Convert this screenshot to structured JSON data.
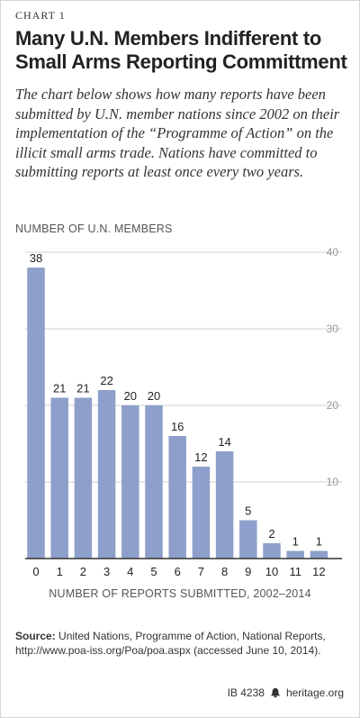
{
  "header": {
    "label": "CHART 1",
    "title": "Many U.N. Members Indifferent to Small Arms Reporting Committment",
    "subtitle": "The chart below shows how many reports have been submitted by U.N. member nations since 2002 on their implementation of the “Programme of Action” on the illicit small arms trade. Nations have committed to submitting reports at least once every two years."
  },
  "chart_data": {
    "type": "bar",
    "categories": [
      "0",
      "1",
      "2",
      "3",
      "4",
      "5",
      "6",
      "7",
      "8",
      "9",
      "10",
      "11",
      "12"
    ],
    "values": [
      38,
      21,
      21,
      22,
      20,
      20,
      16,
      12,
      14,
      5,
      2,
      1,
      1
    ],
    "ylabel": "NUMBER OF U.N. MEMBERS",
    "xlabel": "NUMBER OF REPORTS SUBMITTED, 2002–2014",
    "ylim": [
      0,
      40
    ],
    "yticks": [
      10,
      20,
      30,
      40
    ],
    "grid": true,
    "bar_color": "#8e9fcb",
    "grid_color": "#d0d0d0"
  },
  "source": {
    "label": "Source:",
    "text": "United Nations, Programme of Action, National Reports, http://www.poa-iss.org/Poa/poa.aspx (accessed June 10, 2014)."
  },
  "footer": {
    "id": "IB 4238",
    "site": "heritage.org",
    "icon": "liberty-bell-icon"
  }
}
